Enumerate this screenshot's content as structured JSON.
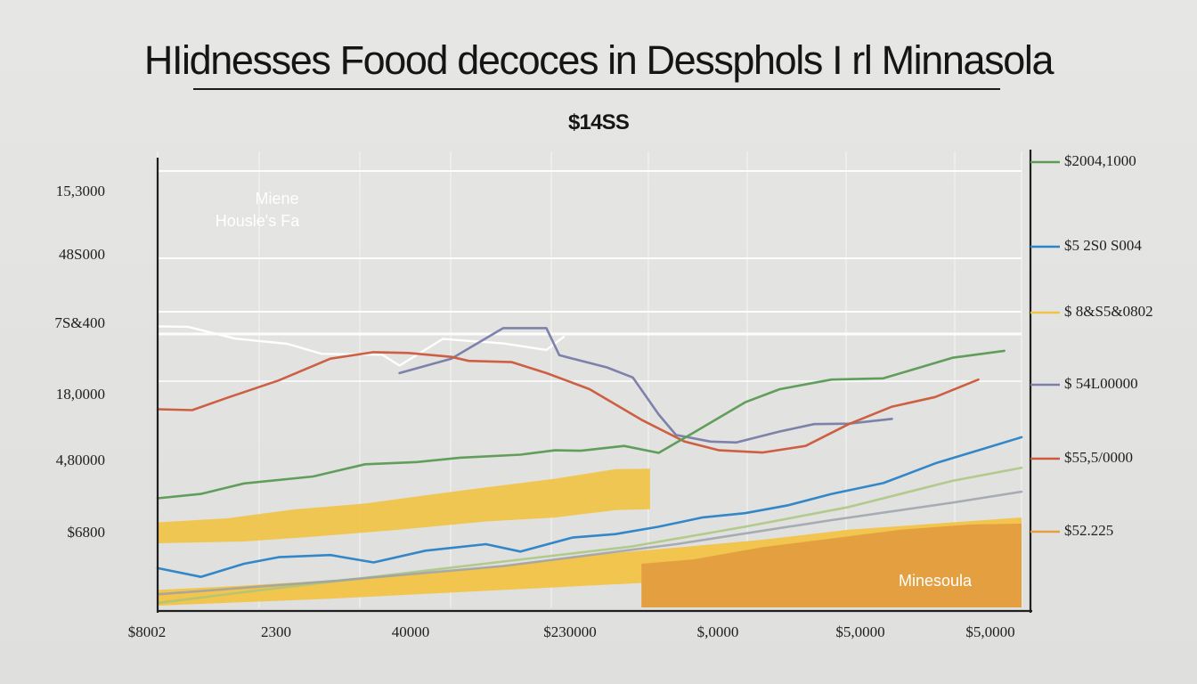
{
  "title": "HIidnesses Foood decoces in Dessphols I rl Minnasola",
  "subtitle": "$14SS",
  "colors": {
    "background": "#e3e3e1",
    "axis": "#1f1f1f",
    "grid": "#ffffff",
    "orange": "#e4a040",
    "yellow": "#f1c346",
    "blue": "#2d84c7",
    "green": "#5d9b57",
    "red": "#cc5b3d",
    "purple": "#7a7fa8",
    "gray": "#9aa0aa",
    "lightgreen": "#a8c47b"
  },
  "chart_data": {
    "type": "area",
    "title": "HIidnesses Foood decoces in Dessphols I rl Minnasola",
    "subtitle": "$14SS",
    "x_categories": [
      "$8002",
      "2300",
      "40000",
      "$230000",
      "$,0000",
      "$5,0000",
      "$5,0000"
    ],
    "left_ticks": [
      "15,3000",
      "48S000",
      "7S&400",
      "18,0000",
      "4,80000",
      "$6800"
    ],
    "right_ticks": [
      "$2004,1000",
      "$5 2S0 S004",
      "$ 8&S5&0802",
      "$ 54L00000",
      "$55,5/0000",
      "$52.225"
    ],
    "x_range": [
      0,
      100
    ],
    "y_range": [
      0,
      100
    ],
    "grid": true,
    "legend": "inline",
    "annotations": {
      "series_label_top": "Miene",
      "series_label_bottom": "Housle's Fa",
      "area_label": "Minesoula"
    },
    "series": [
      {
        "name": "white",
        "color": "#ffffff",
        "points": [
          [
            0,
            64.4
          ],
          [
            3.5,
            64.3
          ],
          [
            9,
            61.6
          ],
          [
            15,
            60.4
          ],
          [
            19,
            58.1
          ],
          [
            26,
            57.9
          ],
          [
            28,
            55.4
          ],
          [
            33,
            61.5
          ],
          [
            40,
            60.5
          ],
          [
            45,
            59.0
          ],
          [
            47,
            62.0
          ]
        ]
      },
      {
        "name": "purple",
        "color": "#7a7fa8",
        "points": [
          [
            28,
            53.7
          ],
          [
            34,
            57.0
          ],
          [
            40,
            64.0
          ],
          [
            45,
            64.0
          ],
          [
            46.5,
            57.8
          ],
          [
            52,
            55.0
          ],
          [
            55,
            52.7
          ],
          [
            58,
            44.2
          ],
          [
            60,
            39.5
          ],
          [
            64,
            38.0
          ],
          [
            67,
            37.8
          ],
          [
            72,
            40.3
          ],
          [
            76,
            42.0
          ],
          [
            80,
            42.1
          ],
          [
            85,
            43.2
          ]
        ]
      },
      {
        "name": "red",
        "color": "#cc5b3d",
        "points": [
          [
            0,
            45.4
          ],
          [
            4,
            45.2
          ],
          [
            8,
            48.0
          ],
          [
            14,
            52.0
          ],
          [
            20,
            57.0
          ],
          [
            25,
            58.5
          ],
          [
            29,
            58.3
          ],
          [
            34,
            57.4
          ],
          [
            36,
            56.5
          ],
          [
            41,
            56.2
          ],
          [
            45,
            53.7
          ],
          [
            50,
            50.0
          ],
          [
            56,
            43.0
          ],
          [
            61,
            38.0
          ],
          [
            65,
            36.0
          ],
          [
            70,
            35.5
          ],
          [
            75,
            37.0
          ],
          [
            80,
            42.0
          ],
          [
            85,
            46.0
          ],
          [
            90,
            48.2
          ],
          [
            95,
            52.2
          ]
        ]
      },
      {
        "name": "green",
        "color": "#5d9b57",
        "points": [
          [
            0,
            25.0
          ],
          [
            5,
            26.0
          ],
          [
            10,
            28.4
          ],
          [
            18,
            30.0
          ],
          [
            24,
            32.8
          ],
          [
            30,
            33.3
          ],
          [
            35,
            34.3
          ],
          [
            42,
            35.0
          ],
          [
            46,
            36.0
          ],
          [
            49,
            35.9
          ],
          [
            54,
            37.0
          ],
          [
            58,
            35.4
          ],
          [
            62,
            40.0
          ],
          [
            68,
            47.0
          ],
          [
            72,
            50.0
          ],
          [
            78,
            52.2
          ],
          [
            84,
            52.5
          ],
          [
            92,
            57.2
          ],
          [
            98,
            58.8
          ]
        ]
      },
      {
        "name": "blue",
        "color": "#2d84c7",
        "points": [
          [
            0,
            9.0
          ],
          [
            5,
            7.0
          ],
          [
            10,
            10.0
          ],
          [
            14,
            11.5
          ],
          [
            20,
            12.0
          ],
          [
            25,
            10.3
          ],
          [
            31,
            13.0
          ],
          [
            38,
            14.5
          ],
          [
            42,
            12.8
          ],
          [
            48,
            16.0
          ],
          [
            53,
            16.8
          ],
          [
            58,
            18.5
          ],
          [
            63,
            20.6
          ],
          [
            68,
            21.6
          ],
          [
            73,
            23.4
          ],
          [
            78,
            26.0
          ],
          [
            84,
            28.5
          ],
          [
            90,
            33.0
          ],
          [
            95,
            36.0
          ],
          [
            100,
            39.0
          ]
        ]
      },
      {
        "name": "light-green",
        "color": "#a8c47b",
        "points": [
          [
            0,
            1.0
          ],
          [
            12,
            4.0
          ],
          [
            25,
            7.0
          ],
          [
            40,
            10.5
          ],
          [
            55,
            14.0
          ],
          [
            68,
            18.5
          ],
          [
            80,
            23.0
          ],
          [
            92,
            29.0
          ],
          [
            100,
            32.0
          ]
        ]
      },
      {
        "name": "gray",
        "color": "#9aa0aa",
        "points": [
          [
            0,
            3.0
          ],
          [
            20,
            6.0
          ],
          [
            40,
            9.5
          ],
          [
            60,
            14.5
          ],
          [
            78,
            20.0
          ],
          [
            92,
            24.0
          ],
          [
            100,
            26.5
          ]
        ]
      }
    ],
    "areas": [
      {
        "name": "upper-yellow-band",
        "color": "#f1c346",
        "opacity": 0.92,
        "top": [
          [
            0,
            19.5
          ],
          [
            8,
            20.4
          ],
          [
            16,
            22.5
          ],
          [
            24,
            23.8
          ],
          [
            31,
            25.7
          ],
          [
            38,
            27.5
          ],
          [
            46,
            29.5
          ],
          [
            53,
            31.7
          ],
          [
            57,
            31.8
          ],
          [
            57,
            29.0
          ]
        ],
        "bottom": [
          [
            0,
            14.7
          ],
          [
            10,
            15.1
          ],
          [
            18,
            16.2
          ],
          [
            28,
            17.8
          ],
          [
            38,
            19.7
          ],
          [
            46,
            20.6
          ],
          [
            53,
            22.3
          ],
          [
            57,
            22.5
          ],
          [
            57,
            22.5
          ]
        ]
      },
      {
        "name": "lower-yellow-band",
        "color": "#f1c346",
        "opacity": 0.95,
        "top": [
          [
            0,
            4.0
          ],
          [
            10,
            5.0
          ],
          [
            20,
            6.2
          ],
          [
            30,
            7.7
          ],
          [
            40,
            9.6
          ],
          [
            50,
            12.0
          ],
          [
            60,
            13.7
          ],
          [
            70,
            15.5
          ],
          [
            80,
            17.8
          ],
          [
            90,
            19.2
          ],
          [
            100,
            20.6
          ]
        ],
        "bottom": [
          [
            0,
            0.4
          ],
          [
            10,
            1.2
          ],
          [
            20,
            2.0
          ],
          [
            30,
            3.0
          ],
          [
            40,
            4.0
          ],
          [
            50,
            5.0
          ],
          [
            60,
            6.0
          ],
          [
            70,
            7.0
          ],
          [
            80,
            8.0
          ],
          [
            90,
            9.0
          ],
          [
            100,
            9.3
          ]
        ]
      },
      {
        "name": "minnesota-orange-area",
        "color": "#e4a040",
        "opacity": 1,
        "top": [
          [
            56,
            10.0
          ],
          [
            62,
            11.0
          ],
          [
            70,
            13.8
          ],
          [
            78,
            15.8
          ],
          [
            86,
            17.8
          ],
          [
            94,
            19.0
          ],
          [
            100,
            19.2
          ]
        ],
        "bottom": [
          [
            56,
            0.0
          ],
          [
            100,
            0.0
          ]
        ]
      }
    ]
  }
}
